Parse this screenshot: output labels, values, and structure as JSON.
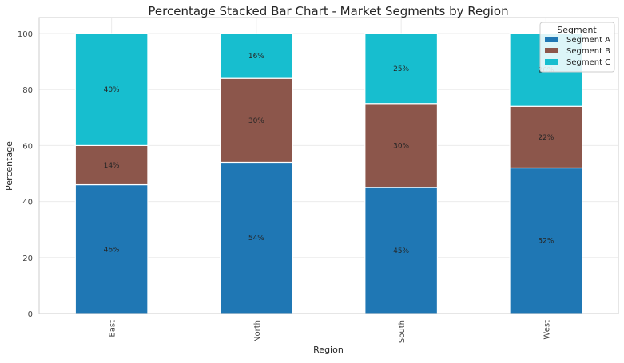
{
  "chart_data": {
    "type": "bar",
    "stacked": true,
    "title": "Percentage Stacked Bar Chart - Market Segments by Region",
    "xlabel": "Region",
    "ylabel": "Percentage",
    "ylim": [
      0,
      100
    ],
    "yticks": [
      0,
      20,
      40,
      60,
      80,
      100
    ],
    "categories": [
      "East",
      "North",
      "South",
      "West"
    ],
    "series": [
      {
        "name": "Segment A",
        "color": "#1f77b4",
        "values": [
          46,
          54,
          45,
          52
        ],
        "labels": [
          "46%",
          "54%",
          "45%",
          "52%"
        ]
      },
      {
        "name": "Segment B",
        "color": "#8c564b",
        "values": [
          14,
          30,
          30,
          22
        ],
        "labels": [
          "14%",
          "30%",
          "30%",
          "22%"
        ]
      },
      {
        "name": "Segment C",
        "color": "#17becf",
        "values": [
          40,
          16,
          25,
          26
        ],
        "labels": [
          "40%",
          "16%",
          "25%",
          "26%"
        ]
      }
    ],
    "legend": {
      "title": "Segment",
      "placement": "top-right"
    },
    "grid": true
  }
}
